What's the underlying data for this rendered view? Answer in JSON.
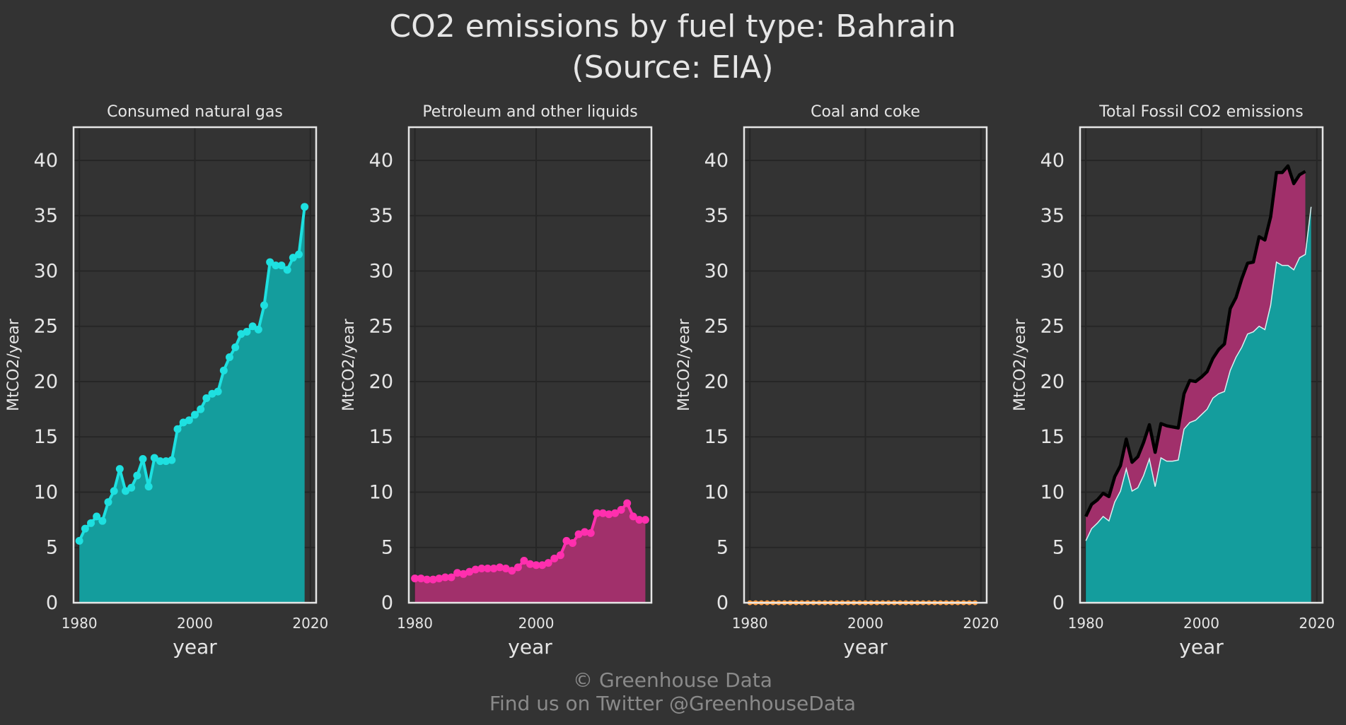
{
  "title_line1": "CO2 emissions by fuel type: Bahrain",
  "title_line2": "(Source: EIA)",
  "credit_line1": "© Greenhouse Data",
  "credit_line2": "Find us on Twitter @GreenhouseData",
  "colors": {
    "background": "#333333",
    "gas": "#1ee0e0",
    "gas_fill": "#13a3a3",
    "petroleum": "#ff2fae",
    "petroleum_fill": "#a8306f",
    "coal": "#ff9a3c",
    "total": "#000000",
    "grid": "#262626",
    "frame": "#e6e6e6"
  },
  "chart_data": [
    {
      "type": "area",
      "title": "Consumed natural gas",
      "xlabel": "year",
      "ylabel": "MtCO2/year",
      "xlim": [
        1979,
        2021
      ],
      "ylim": [
        0,
        43
      ],
      "xticks": [
        1980,
        2000,
        2020
      ],
      "yticks": [
        0,
        5,
        10,
        15,
        20,
        25,
        30,
        35,
        40
      ],
      "x": [
        1980,
        1981,
        1982,
        1983,
        1984,
        1985,
        1986,
        1987,
        1988,
        1989,
        1990,
        1991,
        1992,
        1993,
        1994,
        1995,
        1996,
        1997,
        1998,
        1999,
        2000,
        2001,
        2002,
        2003,
        2004,
        2005,
        2006,
        2007,
        2008,
        2009,
        2010,
        2011,
        2012,
        2013,
        2014,
        2015,
        2016,
        2017,
        2018,
        2019
      ],
      "series": [
        {
          "name": "Consumed natural gas",
          "values": [
            5.6,
            6.7,
            7.2,
            7.8,
            7.4,
            9.1,
            10.1,
            12.1,
            10.1,
            10.4,
            11.5,
            13.0,
            10.5,
            13.1,
            12.8,
            12.8,
            12.9,
            15.7,
            16.3,
            16.5,
            17.0,
            17.5,
            18.5,
            18.9,
            19.1,
            21.0,
            22.2,
            23.1,
            24.3,
            24.5,
            25.0,
            24.7,
            26.9,
            30.8,
            30.5,
            30.5,
            30.1,
            31.2,
            31.5,
            35.8
          ]
        }
      ]
    },
    {
      "type": "area",
      "title": "Petroleum and other liquids",
      "xlabel": "year",
      "ylabel": "MtCO2/year",
      "xlim": [
        1979,
        2019
      ],
      "ylim": [
        0,
        43
      ],
      "xticks": [
        1980,
        2000
      ],
      "yticks": [
        0,
        5,
        10,
        15,
        20,
        25,
        30,
        35,
        40
      ],
      "x": [
        1980,
        1981,
        1982,
        1983,
        1984,
        1985,
        1986,
        1987,
        1988,
        1989,
        1990,
        1991,
        1992,
        1993,
        1994,
        1995,
        1996,
        1997,
        1998,
        1999,
        2000,
        2001,
        2002,
        2003,
        2004,
        2005,
        2006,
        2007,
        2008,
        2009,
        2010,
        2011,
        2012,
        2013,
        2014,
        2015,
        2016,
        2017,
        2018
      ],
      "series": [
        {
          "name": "Petroleum and other liquids",
          "values": [
            2.2,
            2.2,
            2.1,
            2.1,
            2.2,
            2.3,
            2.3,
            2.7,
            2.6,
            2.8,
            3.0,
            3.1,
            3.1,
            3.1,
            3.2,
            3.1,
            2.9,
            3.2,
            3.8,
            3.5,
            3.4,
            3.4,
            3.6,
            4.0,
            4.3,
            5.6,
            5.4,
            6.2,
            6.4,
            6.3,
            8.1,
            8.1,
            8.0,
            8.1,
            8.4,
            9.0,
            7.8,
            7.5,
            7.5
          ]
        }
      ]
    },
    {
      "type": "area",
      "title": "Coal and coke",
      "xlabel": "year",
      "ylabel": "MtCO2/year",
      "xlim": [
        1979,
        2021
      ],
      "ylim": [
        0,
        43
      ],
      "xticks": [
        1980,
        2000,
        2020
      ],
      "yticks": [
        0,
        5,
        10,
        15,
        20,
        25,
        30,
        35,
        40
      ],
      "x": [
        1980,
        1981,
        1982,
        1983,
        1984,
        1985,
        1986,
        1987,
        1988,
        1989,
        1990,
        1991,
        1992,
        1993,
        1994,
        1995,
        1996,
        1997,
        1998,
        1999,
        2000,
        2001,
        2002,
        2003,
        2004,
        2005,
        2006,
        2007,
        2008,
        2009,
        2010,
        2011,
        2012,
        2013,
        2014,
        2015,
        2016,
        2017,
        2018,
        2019
      ],
      "series": [
        {
          "name": "Coal and coke",
          "values": [
            0,
            0,
            0,
            0,
            0,
            0,
            0,
            0,
            0,
            0,
            0,
            0,
            0,
            0,
            0,
            0,
            0,
            0,
            0,
            0,
            0,
            0,
            0,
            0,
            0,
            0,
            0,
            0,
            0,
            0,
            0,
            0,
            0,
            0,
            0,
            0,
            0,
            0,
            0,
            0
          ]
        }
      ]
    },
    {
      "type": "area",
      "title": "Total Fossil CO2 emissions",
      "xlabel": "year",
      "ylabel": "MtCO2/year",
      "xlim": [
        1979,
        2021
      ],
      "ylim": [
        0,
        43
      ],
      "xticks": [
        1980,
        2000,
        2020
      ],
      "yticks": [
        0,
        5,
        10,
        15,
        20,
        25,
        30,
        35,
        40
      ],
      "x": [
        1980,
        1981,
        1982,
        1983,
        1984,
        1985,
        1986,
        1987,
        1988,
        1989,
        1990,
        1991,
        1992,
        1993,
        1994,
        1995,
        1996,
        1997,
        1998,
        1999,
        2000,
        2001,
        2002,
        2003,
        2004,
        2005,
        2006,
        2007,
        2008,
        2009,
        2010,
        2011,
        2012,
        2013,
        2014,
        2015,
        2016,
        2017,
        2018,
        2019
      ],
      "series": [
        {
          "name": "Consumed natural gas",
          "values": [
            5.6,
            6.7,
            7.2,
            7.8,
            7.4,
            9.1,
            10.1,
            12.1,
            10.1,
            10.4,
            11.5,
            13.0,
            10.5,
            13.1,
            12.8,
            12.8,
            12.9,
            15.7,
            16.3,
            16.5,
            17.0,
            17.5,
            18.5,
            18.9,
            19.1,
            21.0,
            22.2,
            23.1,
            24.3,
            24.5,
            25.0,
            24.7,
            26.9,
            30.8,
            30.5,
            30.5,
            30.1,
            31.2,
            31.5,
            35.8
          ]
        },
        {
          "name": "Total Fossil CO2 emissions",
          "values": [
            7.8,
            8.9,
            9.3,
            9.9,
            9.6,
            11.4,
            12.4,
            14.8,
            12.7,
            13.2,
            14.5,
            16.1,
            13.6,
            16.2,
            16.0,
            15.9,
            15.8,
            18.9,
            20.1,
            20.0,
            20.4,
            20.9,
            22.1,
            22.9,
            23.4,
            26.6,
            27.6,
            29.3,
            30.7,
            30.8,
            33.1,
            32.8,
            34.9,
            38.9,
            38.9,
            39.5,
            37.9,
            38.7,
            39.0,
            null
          ]
        }
      ]
    }
  ]
}
